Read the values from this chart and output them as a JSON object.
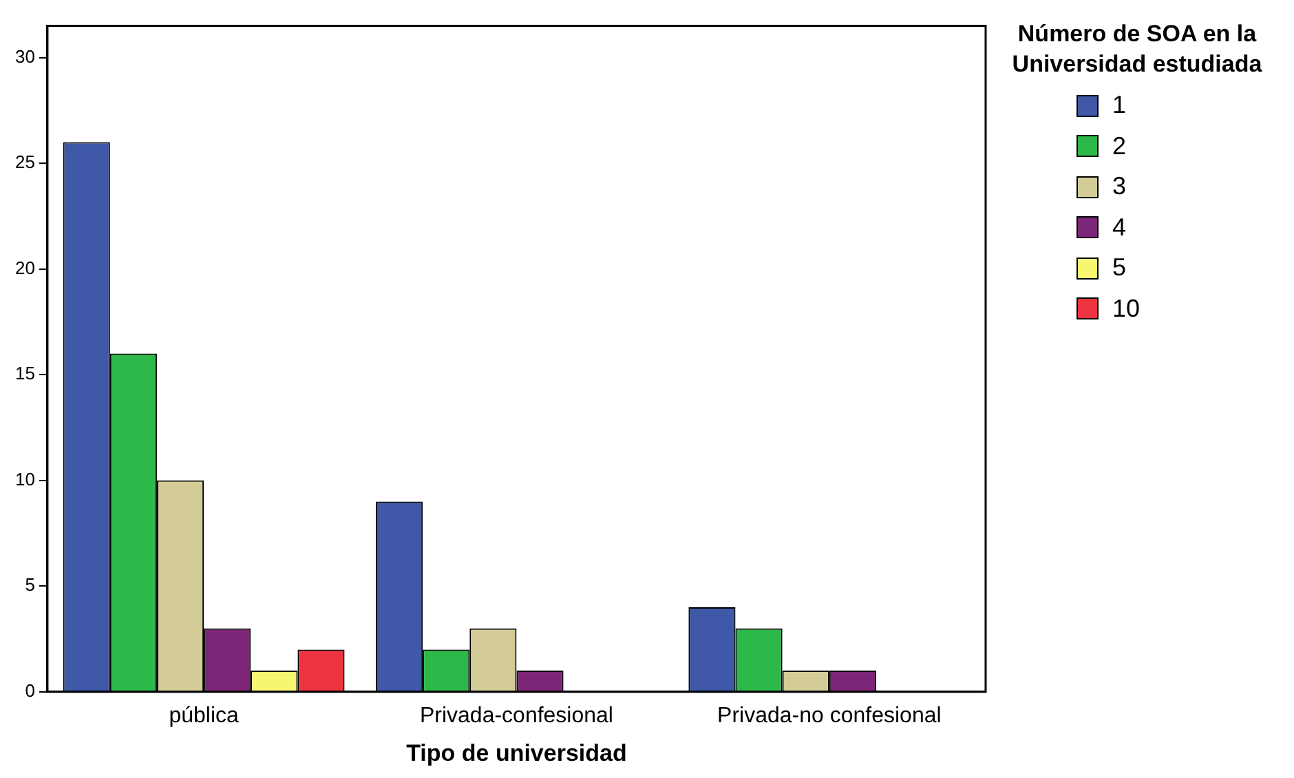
{
  "chart_data": {
    "type": "bar",
    "xlabel": "Tipo de universidad",
    "legend_title": "Número de SOA en la Universidad estudiada",
    "categories": [
      "pública",
      "Privada-confesional",
      "Privada-no confesional"
    ],
    "series": [
      {
        "name": "1",
        "color": "#3f58a8",
        "values": [
          26,
          9,
          4
        ]
      },
      {
        "name": "2",
        "color": "#2db84a",
        "values": [
          16,
          2,
          3
        ]
      },
      {
        "name": "3",
        "color": "#d4cc96",
        "values": [
          10,
          3,
          1
        ]
      },
      {
        "name": "4",
        "color": "#7d2577",
        "values": [
          3,
          1,
          1
        ]
      },
      {
        "name": "5",
        "color": "#f8f570",
        "values": [
          1,
          null,
          null
        ]
      },
      {
        "name": "10",
        "color": "#ee3340",
        "values": [
          2,
          null,
          null
        ]
      }
    ],
    "ylim": [
      0,
      31.5
    ],
    "yticks": [
      0,
      5,
      10,
      15,
      20,
      25,
      30
    ],
    "grid": false,
    "legend": "right"
  }
}
